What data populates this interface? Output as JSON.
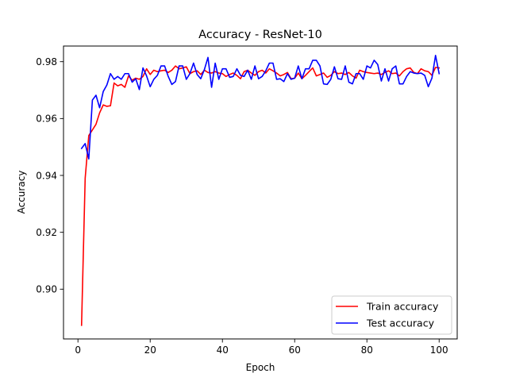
{
  "chart_data": {
    "type": "line",
    "title": "Accuracy - ResNet-10",
    "xlabel": "Epoch",
    "ylabel": "Accuracy",
    "xlim": [
      -4,
      105
    ],
    "ylim": [
      0.8825,
      0.9855
    ],
    "xticks": [
      0,
      20,
      40,
      60,
      80,
      100
    ],
    "xtick_labels": [
      "0",
      "20",
      "40",
      "60",
      "80",
      "100"
    ],
    "yticks": [
      0.9,
      0.92,
      0.94,
      0.96,
      0.98
    ],
    "ytick_labels": [
      "0.90",
      "0.92",
      "0.94",
      "0.96",
      "0.98"
    ],
    "grid": false,
    "legend_position": "lower-right",
    "x": [
      1,
      2,
      3,
      4,
      5,
      6,
      7,
      8,
      9,
      10,
      11,
      12,
      13,
      14,
      15,
      16,
      17,
      18,
      19,
      20,
      21,
      22,
      23,
      24,
      25,
      26,
      27,
      28,
      29,
      30,
      31,
      32,
      33,
      34,
      35,
      36,
      37,
      38,
      39,
      40,
      41,
      42,
      43,
      44,
      45,
      46,
      47,
      48,
      49,
      50,
      51,
      52,
      53,
      54,
      55,
      56,
      57,
      58,
      59,
      60,
      61,
      62,
      63,
      64,
      65,
      66,
      67,
      68,
      69,
      70,
      71,
      72,
      73,
      74,
      75,
      76,
      77,
      78,
      79,
      80,
      81,
      82,
      83,
      84,
      85,
      86,
      87,
      88,
      89,
      90,
      91,
      92,
      93,
      94,
      95,
      96,
      97,
      98,
      99,
      100
    ],
    "series": [
      {
        "name": "Train accuracy",
        "color": "#ff0000",
        "values": [
          0.8873,
          0.939,
          0.954,
          0.956,
          0.958,
          0.962,
          0.9648,
          0.9643,
          0.9645,
          0.9725,
          0.9715,
          0.972,
          0.971,
          0.975,
          0.9735,
          0.9742,
          0.9738,
          0.9748,
          0.9775,
          0.9755,
          0.977,
          0.9765,
          0.9768,
          0.977,
          0.9762,
          0.977,
          0.9785,
          0.9775,
          0.9778,
          0.9782,
          0.9758,
          0.9765,
          0.9768,
          0.9755,
          0.977,
          0.9762,
          0.976,
          0.9765,
          0.976,
          0.9758,
          0.9748,
          0.9755,
          0.976,
          0.9752,
          0.974,
          0.9765,
          0.977,
          0.976,
          0.9752,
          0.9765,
          0.977,
          0.976,
          0.9775,
          0.9768,
          0.976,
          0.975,
          0.9755,
          0.9762,
          0.974,
          0.9742,
          0.976,
          0.974,
          0.9752,
          0.9765,
          0.9778,
          0.975,
          0.9755,
          0.976,
          0.9745,
          0.9752,
          0.9765,
          0.9758,
          0.976,
          0.9755,
          0.9762,
          0.975,
          0.9742,
          0.977,
          0.9765,
          0.9762,
          0.976,
          0.9758,
          0.976,
          0.9755,
          0.9762,
          0.9768,
          0.9758,
          0.976,
          0.975,
          0.9765,
          0.9775,
          0.9778,
          0.9762,
          0.9758,
          0.9775,
          0.9768,
          0.9765,
          0.9752,
          0.978,
          0.9778
        ]
      },
      {
        "name": "Test accuracy",
        "color": "#0000ff",
        "values": [
          0.9495,
          0.9512,
          0.9458,
          0.9665,
          0.9682,
          0.9638,
          0.9695,
          0.9718,
          0.9758,
          0.9738,
          0.9748,
          0.9738,
          0.9758,
          0.9758,
          0.9728,
          0.974,
          0.9702,
          0.9778,
          0.975,
          0.9712,
          0.9738,
          0.9752,
          0.9785,
          0.9785,
          0.9748,
          0.972,
          0.973,
          0.9785,
          0.9785,
          0.9738,
          0.9758,
          0.9795,
          0.9755,
          0.974,
          0.9772,
          0.9815,
          0.971,
          0.9795,
          0.9738,
          0.9775,
          0.9775,
          0.9745,
          0.9748,
          0.9775,
          0.9752,
          0.9748,
          0.977,
          0.9738,
          0.9785,
          0.974,
          0.9748,
          0.9768,
          0.9795,
          0.9795,
          0.9738,
          0.974,
          0.973,
          0.9758,
          0.9738,
          0.9742,
          0.9785,
          0.974,
          0.9775,
          0.9775,
          0.9805,
          0.9805,
          0.9785,
          0.9722,
          0.972,
          0.9738,
          0.9782,
          0.974,
          0.9738,
          0.9785,
          0.9728,
          0.9722,
          0.9758,
          0.9758,
          0.9738,
          0.9785,
          0.9778,
          0.9805,
          0.979,
          0.9732,
          0.9775,
          0.9732,
          0.9775,
          0.9785,
          0.9722,
          0.9722,
          0.9748,
          0.9765,
          0.976,
          0.9758,
          0.976,
          0.9752,
          0.9712,
          0.9742,
          0.9822,
          0.9758
        ]
      }
    ]
  }
}
